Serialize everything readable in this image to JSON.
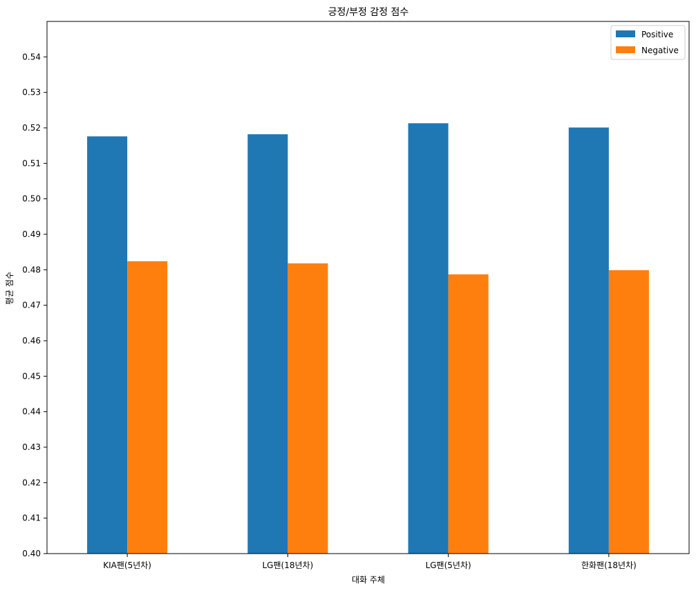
{
  "chart_data": {
    "type": "bar",
    "title": "긍정/부정 감정 점수",
    "xlabel": "대화 주체",
    "ylabel": "평균 점수",
    "categories": [
      "KIA팬(5년차)",
      "LG팬(18년차)",
      "LG팬(5년차)",
      "한화팬(18년차)"
    ],
    "series": [
      {
        "name": "Positive",
        "color": "#1f77b4",
        "values": [
          0.5176,
          0.5182,
          0.5213,
          0.5201
        ]
      },
      {
        "name": "Negative",
        "color": "#ff7f0e",
        "values": [
          0.4824,
          0.4818,
          0.4787,
          0.4799
        ]
      }
    ],
    "ylim": [
      0.4,
      0.55
    ],
    "yticks": [
      "0.40",
      "0.41",
      "0.42",
      "0.43",
      "0.44",
      "0.45",
      "0.46",
      "0.47",
      "0.48",
      "0.49",
      "0.50",
      "0.51",
      "0.52",
      "0.53",
      "0.54"
    ],
    "grid": false,
    "legend_position": "top-right"
  }
}
